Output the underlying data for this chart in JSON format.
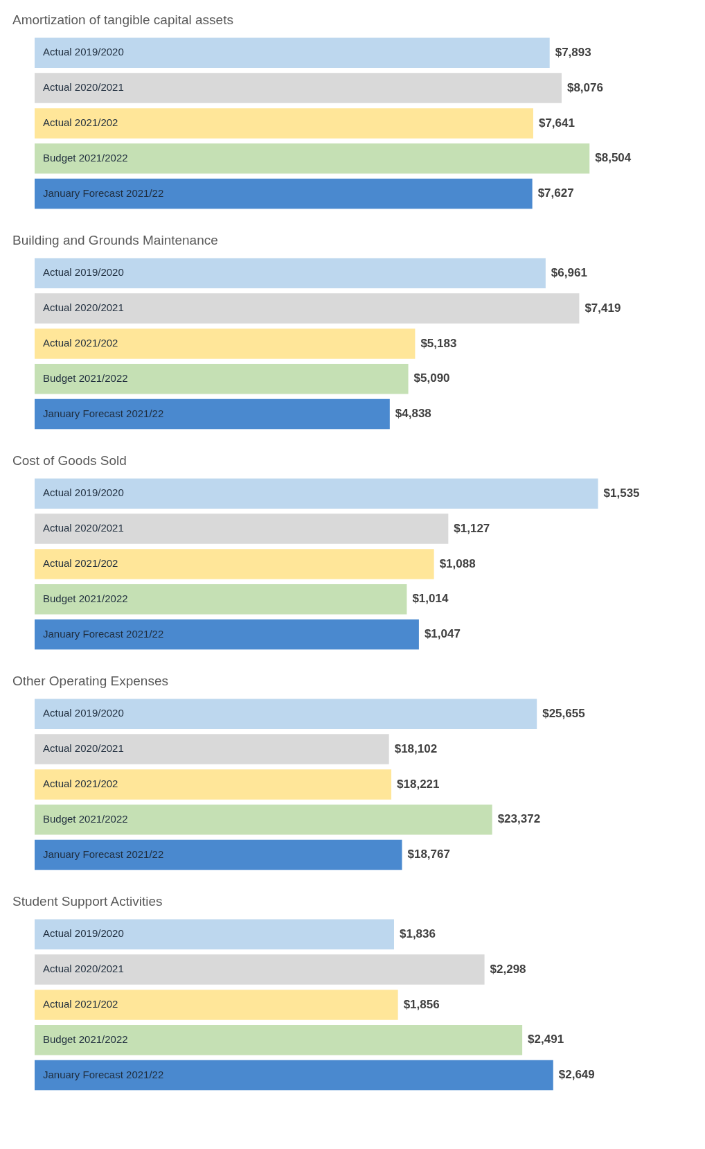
{
  "chart_data": [
    {
      "type": "bar",
      "orientation": "horizontal",
      "title": "Amortization of tangible capital assets",
      "categories": [
        "Actual 2019/2020",
        "Actual 2020/2021",
        "Actual 2021/202",
        "Budget 2021/2022",
        "January Forecast 2021/22"
      ],
      "values": [
        7893,
        8076,
        7641,
        8504,
        7627
      ],
      "value_labels": [
        "$7,893",
        "$8,076",
        "$7,641",
        "$8,504",
        "$7,627"
      ],
      "colors": [
        "#bdd7ee",
        "#d9d9d9",
        "#ffe699",
        "#c5e0b4",
        "#4a89cf"
      ],
      "tick_labels": "y",
      "legend": false
    },
    {
      "type": "bar",
      "orientation": "horizontal",
      "title": "Building and Grounds Maintenance",
      "categories": [
        "Actual 2019/2020",
        "Actual 2020/2021",
        "Actual 2021/202",
        "Budget 2021/2022",
        "January Forecast 2021/22"
      ],
      "values": [
        6961,
        7419,
        5183,
        5090,
        4838
      ],
      "value_labels": [
        "$6,961",
        "$7,419",
        "$5,183",
        "$5,090",
        "$4,838"
      ],
      "colors": [
        "#bdd7ee",
        "#d9d9d9",
        "#ffe699",
        "#c5e0b4",
        "#4a89cf"
      ],
      "tick_labels": "y",
      "legend": false
    },
    {
      "type": "bar",
      "orientation": "horizontal",
      "title": "Cost of Goods Sold",
      "categories": [
        "Actual 2019/2020",
        "Actual 2020/2021",
        "Actual 2021/202",
        "Budget 2021/2022",
        "January Forecast 2021/22"
      ],
      "values": [
        1535,
        1127,
        1088,
        1014,
        1047
      ],
      "value_labels": [
        "$1,535",
        "$1,127",
        "$1,088",
        "$1,014",
        "$1,047"
      ],
      "colors": [
        "#bdd7ee",
        "#d9d9d9",
        "#ffe699",
        "#c5e0b4",
        "#4a89cf"
      ],
      "tick_labels": "y",
      "legend": false
    },
    {
      "type": "bar",
      "orientation": "horizontal",
      "title": "Other Operating Expenses",
      "categories": [
        "Actual 2019/2020",
        "Actual 2020/2021",
        "Actual 2021/202",
        "Budget 2021/2022",
        "January Forecast 2021/22"
      ],
      "values": [
        25655,
        18102,
        18221,
        23372,
        18767
      ],
      "value_labels": [
        "$25,655",
        "$18,102",
        "$18,221",
        "$23,372",
        "$18,767"
      ],
      "colors": [
        "#bdd7ee",
        "#d9d9d9",
        "#ffe699",
        "#c5e0b4",
        "#4a89cf"
      ],
      "tick_labels": "y",
      "legend": false
    },
    {
      "type": "bar",
      "orientation": "horizontal",
      "title": "Student Support Activities",
      "categories": [
        "Actual 2019/2020",
        "Actual 2020/2021",
        "Actual 2021/202",
        "Budget 2021/2022",
        "January Forecast 2021/22"
      ],
      "values": [
        1836,
        2298,
        1856,
        2491,
        2649
      ],
      "value_labels": [
        "$1,836",
        "$2,298",
        "$1,856",
        "$2,491",
        "$2,649"
      ],
      "colors": [
        "#bdd7ee",
        "#d9d9d9",
        "#ffe699",
        "#c5e0b4",
        "#4a89cf"
      ],
      "tick_labels": "y",
      "legend": false
    }
  ]
}
